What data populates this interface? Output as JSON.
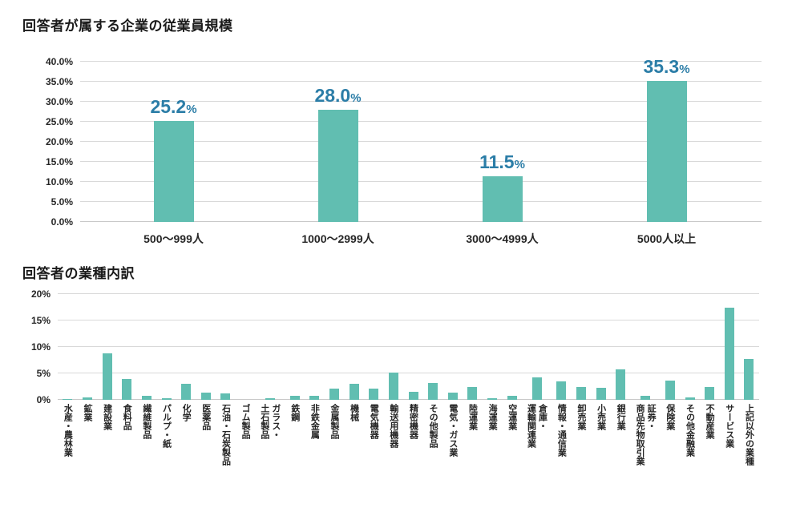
{
  "page": {
    "background": "#ffffff"
  },
  "colors": {
    "bar_fill": "#61beb1",
    "data_label": "#2b7da7",
    "gridline": "#d9d9d9",
    "axis_text": "#262626",
    "title_text": "#1a1a1a"
  },
  "chart_data": [
    {
      "type": "bar",
      "title": "回答者が属する企業の従業員規模",
      "categories": [
        "500〜999人",
        "1000〜2999人",
        "3000〜4999人",
        "5000人以上"
      ],
      "values": [
        25.2,
        28.0,
        11.5,
        35.3
      ],
      "value_labels": [
        "25.2",
        "28.0",
        "11.5",
        "35.3"
      ],
      "label_suffix": "%",
      "y_ticks": [
        "0.0%",
        "5.0%",
        "10.0%",
        "15.0%",
        "20.0%",
        "25.0%",
        "30.0%",
        "35.0%",
        "40.0%"
      ],
      "xlabel": "",
      "ylabel": "",
      "ylim": [
        0,
        40
      ],
      "grid": true,
      "legend": false,
      "bar_color": "#61beb1",
      "data_label_color": "#2b7da7"
    },
    {
      "type": "bar",
      "title": "回答者の業種内訳",
      "categories": [
        "水産・農林業",
        "鉱業",
        "建設業",
        "食料品",
        "繊維製品",
        "パルプ・紙",
        "化学",
        "医薬品",
        "石油・石炭製品",
        "ゴム製品",
        "ガラス・\n土石製品",
        "鉄鋼",
        "非鉄金属",
        "金属製品",
        "機械",
        "電気機器",
        "輸送用機器",
        "精密機器",
        "その他製品",
        "電気・ガス業",
        "陸運業",
        "海運業",
        "空運業",
        "倉庫・\n運輸関連業",
        "情報・通信業",
        "卸売業",
        "小売業",
        "銀行業",
        "証券・\n商品先物取引業",
        "保険業",
        "その他金融業",
        "不動産業",
        "サービス業",
        "上記以外の業種"
      ],
      "values": [
        0.2,
        0.5,
        8.8,
        3.9,
        0.7,
        0.3,
        3.0,
        1.3,
        1.2,
        0.0,
        0.3,
        0.8,
        0.8,
        2.1,
        3.0,
        2.1,
        5.1,
        1.5,
        3.2,
        1.4,
        2.4,
        0.3,
        0.8,
        4.2,
        3.5,
        2.4,
        2.3,
        5.8,
        0.8,
        3.6,
        0.4,
        2.5,
        17.4,
        7.8
      ],
      "y_ticks": [
        "0%",
        "5%",
        "10%",
        "15%",
        "20%"
      ],
      "xlabel": "",
      "ylabel": "",
      "ylim": [
        0,
        20
      ],
      "grid": true,
      "legend": false,
      "bar_color": "#61beb1"
    }
  ]
}
